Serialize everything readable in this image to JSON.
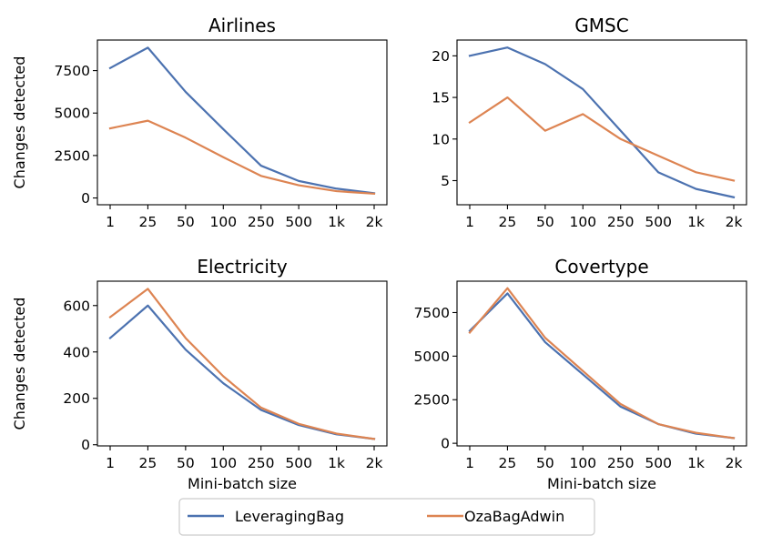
{
  "chart_data": [
    {
      "type": "line",
      "title": "Airlines",
      "xlabel": "",
      "ylabel": "Changes detected",
      "categories": [
        "1",
        "25",
        "50",
        "100",
        "250",
        "500",
        "1k",
        "2k"
      ],
      "ylim": [
        -400,
        9300
      ],
      "yticks": [
        0,
        2500,
        5000,
        7500
      ],
      "ytick_labels": [
        "0",
        "2500",
        "5000",
        "7500"
      ],
      "series": [
        {
          "name": "LeveragingBag",
          "values": [
            7650,
            8850,
            6250,
            4050,
            1900,
            1000,
            550,
            280
          ]
        },
        {
          "name": "OzaBagAdwin",
          "values": [
            4100,
            4550,
            3550,
            2400,
            1300,
            750,
            400,
            250
          ]
        }
      ]
    },
    {
      "type": "line",
      "title": "GMSC",
      "xlabel": "",
      "ylabel": "",
      "categories": [
        "1",
        "25",
        "50",
        "100",
        "250",
        "500",
        "1k",
        "2k"
      ],
      "ylim": [
        2.1,
        21.9
      ],
      "yticks": [
        5,
        10,
        15,
        20
      ],
      "ytick_labels": [
        "5",
        "10",
        "15",
        "20"
      ],
      "series": [
        {
          "name": "LeveragingBag",
          "values": [
            20,
            21,
            19,
            16,
            11,
            6,
            4,
            3
          ]
        },
        {
          "name": "OzaBagAdwin",
          "values": [
            12,
            15,
            11,
            13,
            10,
            8,
            6,
            5
          ]
        }
      ]
    },
    {
      "type": "line",
      "title": "Electricity",
      "xlabel": "Mini-batch size",
      "ylabel": "Changes detected",
      "categories": [
        "1",
        "25",
        "50",
        "100",
        "250",
        "500",
        "1k",
        "2k"
      ],
      "ylim": [
        -5,
        705
      ],
      "yticks": [
        0,
        200,
        400,
        600
      ],
      "ytick_labels": [
        "0",
        "200",
        "400",
        "600"
      ],
      "series": [
        {
          "name": "LeveragingBag",
          "values": [
            460,
            600,
            410,
            265,
            150,
            85,
            45,
            25
          ]
        },
        {
          "name": "OzaBagAdwin",
          "values": [
            550,
            672,
            460,
            295,
            160,
            90,
            48,
            25
          ]
        }
      ]
    },
    {
      "type": "line",
      "title": "Covertype",
      "xlabel": "Mini-batch size",
      "ylabel": "",
      "categories": [
        "1",
        "25",
        "50",
        "100",
        "250",
        "500",
        "1k",
        "2k"
      ],
      "ylim": [
        -150,
        9300
      ],
      "yticks": [
        0,
        2500,
        5000,
        7500
      ],
      "ytick_labels": [
        "0",
        "2500",
        "5000",
        "7500"
      ],
      "series": [
        {
          "name": "LeveragingBag",
          "values": [
            6450,
            8600,
            5800,
            3950,
            2100,
            1100,
            550,
            300
          ]
        },
        {
          "name": "OzaBagAdwin",
          "values": [
            6350,
            8900,
            6050,
            4150,
            2250,
            1100,
            600,
            300
          ]
        }
      ]
    }
  ],
  "legend": {
    "placement": "bottom-center",
    "entries": [
      {
        "label": "LeveragingBag",
        "color": "#4c72b0"
      },
      {
        "label": "OzaBagAdwin",
        "color": "#dd8452"
      }
    ]
  },
  "colors": {
    "LeveragingBag": "#4c72b0",
    "OzaBagAdwin": "#dd8452"
  }
}
